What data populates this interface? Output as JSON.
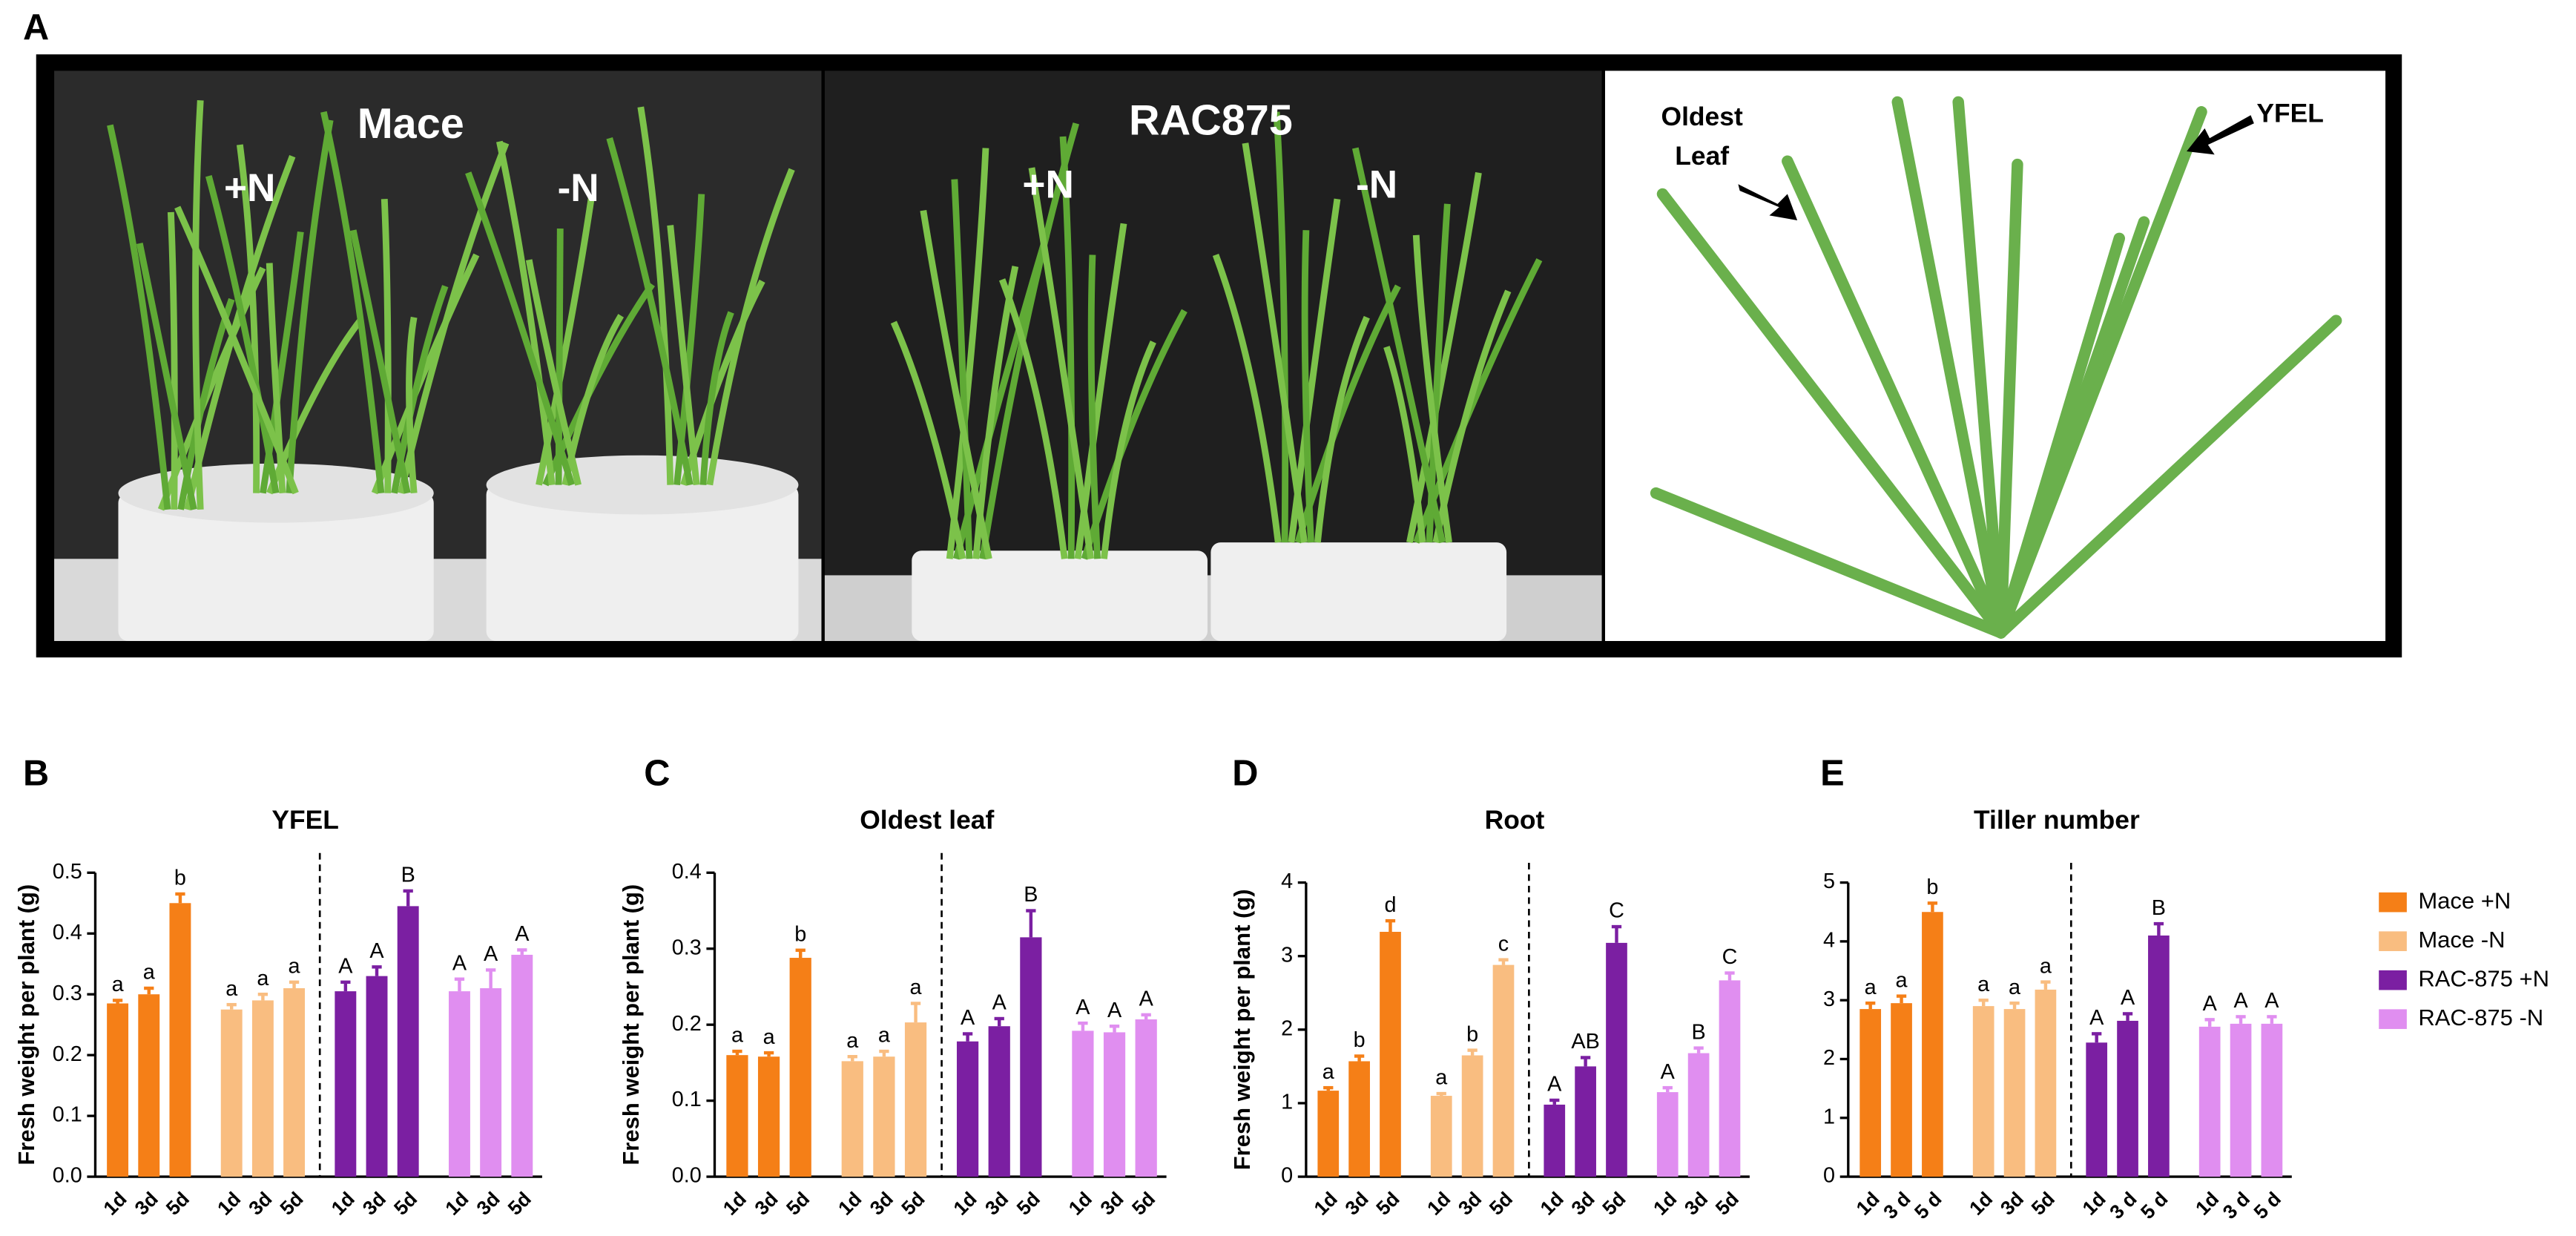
{
  "panel_labels": [
    "A",
    "B",
    "C",
    "D",
    "E"
  ],
  "panel_a": {
    "photo_1": {
      "title": "Mace",
      "plus": "+N",
      "minus": "-N"
    },
    "photo_2": {
      "title": "RAC875",
      "plus": "+N",
      "minus": "-N"
    },
    "diagram": {
      "oldest_leaf": [
        "Oldest",
        "Leaf"
      ],
      "yfel": "YFEL"
    }
  },
  "legend": [
    {
      "name": "Mace +N",
      "color": "#f57f17"
    },
    {
      "name": "Mace -N",
      "color": "#f9bd80"
    },
    {
      "name": "RAC-875 +N",
      "color": "#7b1fa2"
    },
    {
      "name": "RAC-875 -N",
      "color": "#e08ef0"
    }
  ],
  "chart_data": [
    {
      "type": "bar",
      "title": "YFEL",
      "y_label": "Fresh weight per plant (g)",
      "ylim": [
        0,
        0.5
      ],
      "yticks": [
        {
          "value": 0,
          "label": "0.0"
        },
        0.1,
        0.2,
        0.3,
        0.4,
        0.5
      ],
      "series": [
        {
          "categories": [
            "1d",
            "3d",
            "5d"
          ],
          "values": [
            0.285,
            0.3,
            0.45
          ],
          "errors": [
            0.005,
            0.01,
            0.015
          ],
          "letters": [
            "a",
            "a",
            "b"
          ]
        },
        {
          "categories": [
            "1d",
            "3d",
            "5d"
          ],
          "values": [
            0.275,
            0.29,
            0.31
          ],
          "errors": [
            0.008,
            0.01,
            0.01
          ],
          "letters": [
            "a",
            "a",
            "a"
          ]
        },
        {
          "categories": [
            "1d",
            "3d",
            "5d"
          ],
          "values": [
            0.305,
            0.33,
            0.445
          ],
          "errors": [
            0.015,
            0.015,
            0.025
          ],
          "letters": [
            "A",
            "A",
            "B"
          ]
        },
        {
          "categories": [
            "1d",
            "3d",
            "5d"
          ],
          "values": [
            0.305,
            0.31,
            0.365
          ],
          "errors": [
            0.02,
            0.03,
            0.008
          ],
          "letters": [
            "A",
            "A",
            "A"
          ]
        }
      ]
    },
    {
      "type": "bar",
      "title": "Oldest leaf",
      "y_label": "Fresh weight per plant (g)",
      "ylim": [
        0,
        0.4
      ],
      "yticks": [
        {
          "value": 0,
          "label": "0.0"
        },
        0.1,
        0.2,
        0.3,
        0.4
      ],
      "series": [
        {
          "categories": [
            "1d",
            "3d",
            "5d"
          ],
          "values": [
            0.16,
            0.158,
            0.288
          ],
          "errors": [
            0.005,
            0.005,
            0.01
          ],
          "letters": [
            "a",
            "a",
            "b"
          ]
        },
        {
          "categories": [
            "1d",
            "3d",
            "5d"
          ],
          "values": [
            0.152,
            0.158,
            0.203
          ],
          "errors": [
            0.006,
            0.007,
            0.025
          ],
          "letters": [
            "a",
            "a",
            "a"
          ]
        },
        {
          "categories": [
            "1d",
            "3d",
            "5d"
          ],
          "values": [
            0.178,
            0.198,
            0.315
          ],
          "errors": [
            0.01,
            0.01,
            0.035
          ],
          "letters": [
            "A",
            "A",
            "B"
          ]
        },
        {
          "categories": [
            "1d",
            "3d",
            "5d"
          ],
          "values": [
            0.192,
            0.19,
            0.207
          ],
          "errors": [
            0.01,
            0.008,
            0.006
          ],
          "letters": [
            "A",
            "A",
            "A"
          ]
        }
      ]
    },
    {
      "type": "bar",
      "title": "Root",
      "y_label": "Fresh weight per plant (g)",
      "ylim": [
        0,
        4
      ],
      "yticks": [
        0,
        1,
        2,
        3,
        4
      ],
      "series": [
        {
          "categories": [
            "1d",
            "3d",
            "5d"
          ],
          "values": [
            1.17,
            1.57,
            3.33
          ],
          "errors": [
            0.04,
            0.07,
            0.15
          ],
          "letters": [
            "a",
            "b",
            "d"
          ]
        },
        {
          "categories": [
            "1d",
            "3d",
            "5d"
          ],
          "values": [
            1.1,
            1.65,
            2.88
          ],
          "errors": [
            0.03,
            0.07,
            0.07
          ],
          "letters": [
            "a",
            "b",
            "c"
          ]
        },
        {
          "categories": [
            "1d",
            "3d",
            "5d"
          ],
          "values": [
            0.98,
            1.5,
            3.18
          ],
          "errors": [
            0.06,
            0.12,
            0.22
          ],
          "letters": [
            "A",
            "AB",
            "C"
          ]
        },
        {
          "categories": [
            "1d",
            "3d",
            "5d"
          ],
          "values": [
            1.15,
            1.68,
            2.67
          ],
          "errors": [
            0.06,
            0.07,
            0.1
          ],
          "letters": [
            "A",
            "B",
            "C"
          ]
        }
      ]
    },
    {
      "type": "bar",
      "title": "Tiller number",
      "ylim": [
        0,
        5
      ],
      "yticks": [
        0,
        1,
        2,
        3,
        4,
        5
      ],
      "series": [
        {
          "categories": [
            "1d",
            "3 d",
            "5 d"
          ],
          "values": [
            2.85,
            2.95,
            4.5
          ],
          "errors": [
            0.1,
            0.12,
            0.15
          ],
          "letters": [
            "a",
            "a",
            "b"
          ]
        },
        {
          "categories": [
            "1d",
            "3d",
            "5d"
          ],
          "values": [
            2.9,
            2.85,
            3.18
          ],
          "errors": [
            0.1,
            0.1,
            0.13
          ],
          "letters": [
            "a",
            "a",
            "a"
          ]
        },
        {
          "categories": [
            "1d",
            "3 d",
            "5 d"
          ],
          "values": [
            2.28,
            2.65,
            4.1
          ],
          "errors": [
            0.15,
            0.12,
            0.2
          ],
          "letters": [
            "A",
            "A",
            "B"
          ]
        },
        {
          "categories": [
            "1d",
            "3 d",
            "5 d"
          ],
          "values": [
            2.55,
            2.6,
            2.6
          ],
          "errors": [
            0.12,
            0.12,
            0.12
          ],
          "letters": [
            "A",
            "A",
            "A"
          ]
        }
      ]
    }
  ]
}
